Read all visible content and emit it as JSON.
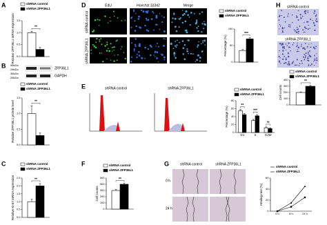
{
  "panels": [
    "A",
    "B",
    "C",
    "D",
    "E",
    "F",
    "G",
    "H"
  ],
  "images": {
    "blot_bands": [
      "ZFP36L1",
      "GAPDH"
    ],
    "blot_sizes": [
      "98kDa",
      "28kDa",
      "36kDa",
      "28kDa"
    ],
    "edu_headers": [
      "EdU",
      "Hoechst 33342",
      "Merge"
    ],
    "edu_rows": [
      "shRNA control",
      "shRNA ZFP36L1"
    ],
    "cycle_titles": [
      "shRNA control",
      "shRNA ZFP36L1"
    ],
    "wound_cols": [
      "shRNA control",
      "shRNA ZFP36L1"
    ],
    "wound_rows": [
      "0 h",
      "24 h"
    ],
    "transwell_titles": [
      "shRNA control",
      "shRNA ZFP36L1"
    ]
  },
  "chart_data": [
    {
      "type": "bar",
      "ylabel": "Relative ZFP36L1 mRNA expression",
      "categories": [
        null
      ],
      "series": [
        {
          "name": "shRNA control",
          "color": "#ffffff",
          "values": [
            1.0
          ],
          "errors": [
            0.06
          ]
        },
        {
          "name": "shRNA ZFP36L1",
          "color": "#000000",
          "values": [
            0.3
          ],
          "errors": [
            0.08
          ]
        }
      ],
      "ylim": [
        0,
        1.5
      ],
      "yticks": [
        {
          "value": 0,
          "label": "0.0"
        },
        0.5,
        {
          "value": 1,
          "label": "1.0"
        },
        1.5
      ],
      "annotations": [
        "**"
      ]
    },
    {
      "type": "bar",
      "ylabel": "Relative ZFP36L1 protein level",
      "categories": [
        null
      ],
      "series": [
        {
          "name": "shRNA control",
          "color": "#ffffff",
          "values": [
            1.0
          ],
          "errors": [
            0.25
          ]
        },
        {
          "name": "shRNA ZFP36L1",
          "color": "#000000",
          "values": [
            0.3
          ],
          "errors": [
            0.08
          ]
        }
      ],
      "ylim": [
        0,
        1.5
      ],
      "yticks": [
        {
          "value": 0,
          "label": "0.0"
        },
        0.5,
        {
          "value": 1,
          "label": "1.0"
        },
        1.5
      ],
      "annotations": [
        "**"
      ]
    },
    {
      "type": "bar",
      "ylabel": "Relative Ki-67 mRNA expression",
      "categories": [
        null
      ],
      "series": [
        {
          "name": "shRNA control",
          "color": "#ffffff",
          "values": [
            1.0
          ],
          "errors": [
            0.15
          ]
        },
        {
          "name": "shRNA ZFP36L1",
          "color": "#000000",
          "values": [
            2.0
          ],
          "errors": [
            0.15
          ]
        }
      ],
      "ylim": [
        0,
        2.5
      ],
      "yticks": [
        {
          "value": 0,
          "label": "0.0"
        },
        0.5,
        {
          "value": 1,
          "label": "1.0"
        },
        1.5,
        {
          "value": 2,
          "label": "2.0"
        },
        2.5
      ],
      "annotations": [
        "**"
      ]
    },
    {
      "type": "bar",
      "ylabel": "Percentage (%)",
      "categories": [
        null
      ],
      "series": [
        {
          "name": "shRNA control",
          "color": "#ffffff",
          "values": [
            35
          ],
          "errors": [
            3
          ]
        },
        {
          "name": "shRNA ZFP36L1",
          "color": "#000000",
          "values": [
            70
          ],
          "errors": [
            4
          ]
        }
      ],
      "ylim": [
        0,
        100
      ],
      "yticks": [
        0,
        50,
        100
      ],
      "annotations": [
        "***"
      ]
    },
    {
      "type": "bar",
      "ylabel": "Percentage (%)",
      "categories": [
        "G1",
        "S",
        "G2M"
      ],
      "series": [
        {
          "name": "shRNA control",
          "color": "#ffffff",
          "values": [
            55,
            30,
            12
          ],
          "errors": [
            3,
            3,
            2
          ]
        },
        {
          "name": "shRNA ZFP36L1",
          "color": "#000000",
          "values": [
            45,
            42,
            10
          ],
          "errors": [
            3,
            3,
            2
          ]
        }
      ],
      "ylim": [
        0,
        80
      ],
      "yticks": [
        0,
        20,
        40,
        60,
        80
      ],
      "annotations": [
        "**",
        "***",
        "**"
      ]
    },
    {
      "type": "bar",
      "ylabel": "Cell counts",
      "categories": [
        null
      ],
      "series": [
        {
          "name": "shRNA control",
          "color": "#ffffff",
          "values": [
            300
          ],
          "errors": [
            15
          ]
        },
        {
          "name": "shRNA ZFP36L1",
          "color": "#000000",
          "values": [
            400
          ],
          "errors": [
            15
          ]
        }
      ],
      "ylim": [
        0,
        500
      ],
      "yticks": [
        0,
        100,
        200,
        300,
        400,
        500
      ],
      "annotations": [
        "**"
      ]
    },
    {
      "type": "line",
      "ylabel": "Healing rate (%)",
      "categories": [
        "0 h",
        "8 h",
        "24 h"
      ],
      "series": [
        {
          "name": "shRNA control",
          "color": "#000000",
          "values": [
            0,
            8,
            25
          ]
        },
        {
          "name": "shRNA ZFP36L1",
          "color": "#000000",
          "values": [
            0,
            15,
            45
          ]
        }
      ],
      "ylim": [
        0,
        60
      ],
      "yticks": [
        0,
        20,
        40,
        60
      ]
    },
    {
      "type": "bar",
      "ylabel": "Cell counts",
      "categories": [
        null
      ],
      "series": [
        {
          "name": "shRNA control",
          "color": "#ffffff",
          "values": [
            200
          ],
          "errors": [
            10
          ]
        },
        {
          "name": "shRNA ZFP36L1",
          "color": "#000000",
          "values": [
            300
          ],
          "errors": [
            12
          ]
        }
      ],
      "ylim": [
        0,
        400
      ],
      "yticks": [
        0,
        100,
        200,
        300,
        400
      ],
      "annotations": [
        "**"
      ]
    }
  ]
}
